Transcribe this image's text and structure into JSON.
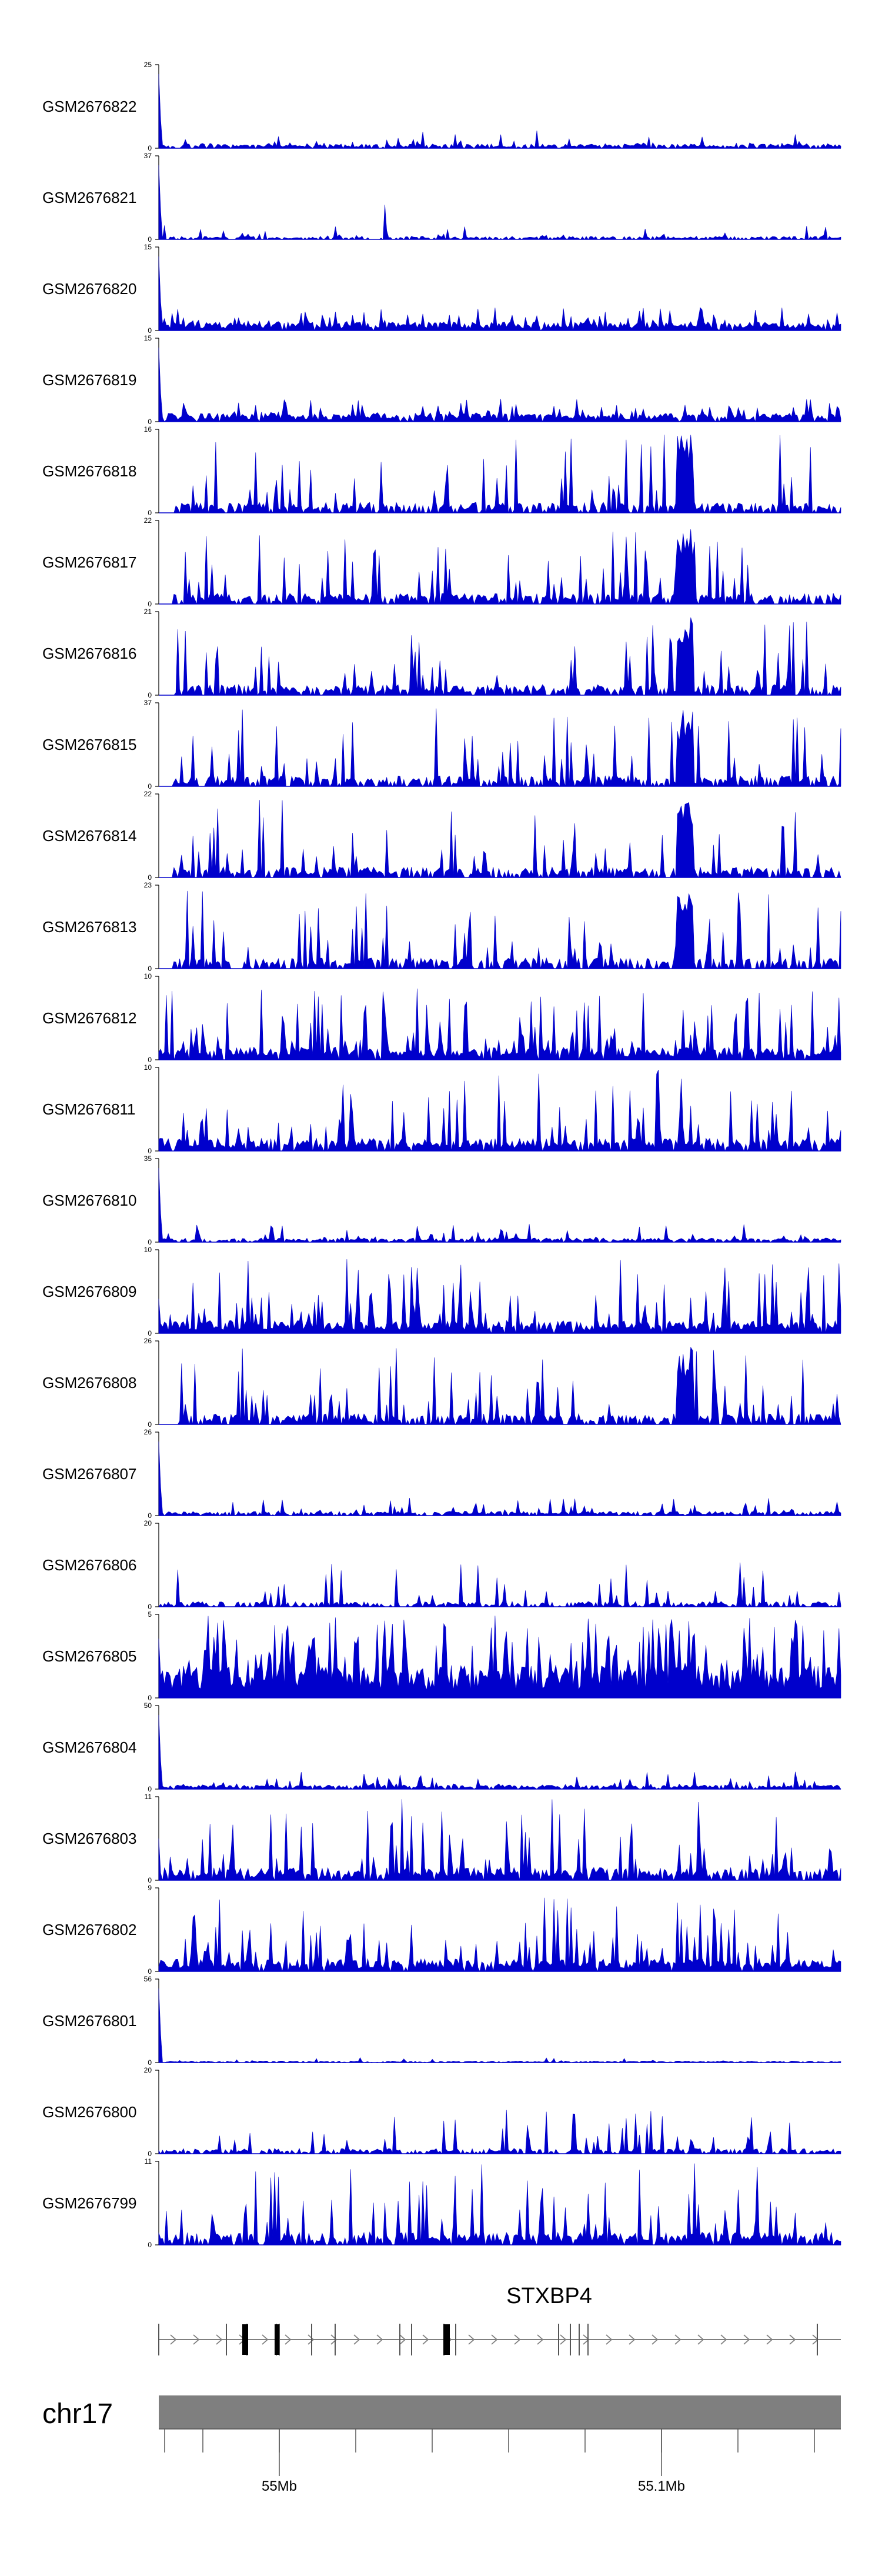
{
  "chart_data": {
    "type": "area",
    "fill_color": "#0000cc",
    "track_frame_color": "#000000",
    "tracks": [
      {
        "name": "GSM2676822",
        "ymax": 25,
        "ymin": 0,
        "profile": "low",
        "seed": 22
      },
      {
        "name": "GSM2676821",
        "ymax": 37,
        "ymin": 0,
        "profile": "low-spike",
        "seed": 21
      },
      {
        "name": "GSM2676820",
        "ymax": 15,
        "ymin": 0,
        "profile": "dense-low",
        "seed": 20
      },
      {
        "name": "GSM2676819",
        "ymax": 15,
        "ymin": 0,
        "profile": "dense-low",
        "seed": 19
      },
      {
        "name": "GSM2676818",
        "ymax": 16,
        "ymin": 0,
        "profile": "peaky",
        "seed": 18
      },
      {
        "name": "GSM2676817",
        "ymax": 22,
        "ymin": 0,
        "profile": "peaky",
        "seed": 17
      },
      {
        "name": "GSM2676816",
        "ymax": 21,
        "ymin": 0,
        "profile": "peaky",
        "seed": 16
      },
      {
        "name": "GSM2676815",
        "ymax": 37,
        "ymin": 0,
        "profile": "peaky",
        "seed": 15
      },
      {
        "name": "GSM2676814",
        "ymax": 22,
        "ymin": 0,
        "profile": "peaky",
        "seed": 14
      },
      {
        "name": "GSM2676813",
        "ymax": 23,
        "ymin": 0,
        "profile": "peaky",
        "seed": 13
      },
      {
        "name": "GSM2676812",
        "ymax": 10,
        "ymin": 0,
        "profile": "dense",
        "seed": 12
      },
      {
        "name": "GSM2676811",
        "ymax": 10,
        "ymin": 0,
        "profile": "peaky-dense",
        "seed": 11
      },
      {
        "name": "GSM2676810",
        "ymax": 35,
        "ymin": 0,
        "profile": "low",
        "seed": 10
      },
      {
        "name": "GSM2676809",
        "ymax": 10,
        "ymin": 0,
        "profile": "dense",
        "seed": 9
      },
      {
        "name": "GSM2676808",
        "ymax": 26,
        "ymin": 0,
        "profile": "peaky",
        "seed": 8
      },
      {
        "name": "GSM2676807",
        "ymax": 26,
        "ymin": 0,
        "profile": "low",
        "seed": 7
      },
      {
        "name": "GSM2676806",
        "ymax": 20,
        "ymin": 0,
        "profile": "sparse",
        "seed": 6
      },
      {
        "name": "GSM2676805",
        "ymax": 5,
        "ymin": 0,
        "profile": "very-dense",
        "seed": 5
      },
      {
        "name": "GSM2676804",
        "ymax": 50,
        "ymin": 0,
        "profile": "low",
        "seed": 4
      },
      {
        "name": "GSM2676803",
        "ymax": 11,
        "ymin": 0,
        "profile": "peaky-dense",
        "seed": 3
      },
      {
        "name": "GSM2676802",
        "ymax": 9,
        "ymin": 0,
        "profile": "dense",
        "seed": 2
      },
      {
        "name": "GSM2676801",
        "ymax": 56,
        "ymin": 0,
        "profile": "very-low",
        "seed": 1
      },
      {
        "name": "GSM2676800",
        "ymax": 20,
        "ymin": 0,
        "profile": "sparse",
        "seed": 100
      },
      {
        "name": "GSM2676799",
        "ymax": 11,
        "ymin": 0,
        "profile": "peaky-dense",
        "seed": 99
      }
    ],
    "gene": {
      "name": "STXBP4",
      "strand": "+",
      "line_color": "#7f7f7f",
      "exon_color": "#000000"
    },
    "ideogram": {
      "chromosome": "chr17",
      "color": "#7f7f7f"
    },
    "x_axis": {
      "major_ticks": [
        {
          "label": "55Mb"
        },
        {
          "label": "55.1Mb"
        }
      ]
    }
  }
}
